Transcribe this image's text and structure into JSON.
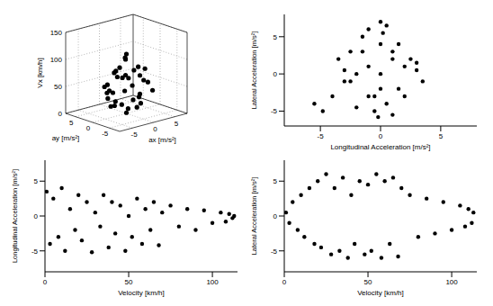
{
  "chart_data": [
    {
      "type": "scatter3d",
      "x_label": "ax [m/s²]",
      "y_label": "ay [m/s²]",
      "z_label": "Vx [km/h]",
      "x": [
        -3,
        -1,
        0,
        1,
        2,
        -2,
        0.5,
        -0.5,
        3,
        -4,
        1.5,
        -1.5,
        0,
        2.5,
        -2.5,
        0.8,
        -0.8,
        1.2,
        -3.5,
        4,
        0.3,
        -1.2,
        2,
        -2,
        0,
        1,
        -1,
        0.5,
        -6,
        3.5,
        -0.3,
        1.8,
        -1.8,
        0.6,
        -2.8,
        2.2
      ],
      "y": [
        2,
        -3,
        4,
        -1,
        0.5,
        -2,
        1,
        3,
        -4,
        0.5,
        5,
        -5,
        0,
        2.5,
        1.5,
        -2.5,
        -1,
        3.5,
        -3,
        1,
        6,
        -5.5,
        -3,
        4,
        -0.5,
        1.5,
        2,
        -4.5,
        -4,
        -2,
        0.8,
        -1.5,
        2.8,
        -3.5,
        -0.8,
        3
      ],
      "z": [
        40,
        60,
        30,
        80,
        20,
        50,
        100,
        70,
        45,
        35,
        65,
        25,
        110,
        55,
        15,
        90,
        5,
        75,
        30,
        60,
        40,
        50,
        85,
        45,
        10,
        95,
        20,
        70,
        35,
        55,
        65,
        30,
        40,
        25,
        75,
        60
      ],
      "xlim": [
        -8,
        8
      ],
      "ylim": [
        -8,
        8
      ],
      "zlim": [
        0,
        150
      ],
      "xticks": [
        -5,
        0,
        5
      ],
      "yticks": [
        -5,
        0,
        5
      ],
      "zticks": [
        0,
        50,
        100,
        150
      ],
      "color": "#000000",
      "marker": "dot",
      "grid": true
    },
    {
      "type": "scatter",
      "x_label": "Longitudinal Acceleration [m/s²]",
      "y_label": "Lateral Acceleration [m/s²]",
      "x": [
        -5.5,
        -4.8,
        -4,
        -3.5,
        -3,
        -2.5,
        -2,
        -1.5,
        -1,
        -0.5,
        0,
        0.5,
        1,
        1.5,
        2,
        2.5,
        3,
        3.5,
        -1,
        0,
        1,
        -2,
        2,
        0,
        -0.5,
        0.5,
        -1.5,
        1.5,
        0,
        -3,
        3,
        -2.5,
        0.2,
        -0.2,
        1,
        -1
      ],
      "y": [
        -4,
        -5,
        -3,
        2,
        -1,
        3,
        -4.5,
        5,
        6,
        -5,
        7,
        6.5,
        -5.5,
        4,
        -3,
        2,
        0.5,
        -1,
        1,
        -2,
        2,
        0,
        1,
        4,
        -3,
        -4,
        3,
        -2,
        0,
        0.5,
        1.5,
        -1,
        5.5,
        -5.8,
        3,
        -3
      ],
      "xlim": [
        -8,
        8
      ],
      "ylim": [
        -7,
        8
      ],
      "xticks": [
        -5,
        0,
        5
      ],
      "yticks": [
        -5,
        0,
        5
      ],
      "color": "#000000",
      "marker": "dot",
      "grid": false
    },
    {
      "type": "scatter",
      "x_label": "Velocity [km/h]",
      "y_label": "Longitudinal Acceleration [m/s²]",
      "x": [
        1,
        3,
        5,
        8,
        10,
        12,
        15,
        18,
        20,
        22,
        25,
        28,
        30,
        33,
        35,
        38,
        40,
        42,
        45,
        48,
        50,
        52,
        55,
        58,
        60,
        63,
        65,
        68,
        70,
        75,
        80,
        85,
        90,
        95,
        100,
        105,
        108,
        110,
        112,
        113
      ],
      "y": [
        3.5,
        -4,
        2.5,
        -3,
        4,
        -5,
        1,
        -2,
        3,
        -3.5,
        2,
        -5.2,
        0.5,
        -1.5,
        3,
        -4.5,
        2,
        -2.5,
        1.5,
        -5,
        0,
        -3,
        2.5,
        -4,
        1,
        -2,
        2,
        -4.2,
        0.5,
        1.5,
        -1.5,
        1,
        -2,
        0.8,
        -1,
        0.5,
        -0.8,
        0.3,
        -0.3,
        0
      ],
      "xlim": [
        0,
        115
      ],
      "ylim": [
        -8,
        8
      ],
      "xticks": [
        0,
        50,
        100
      ],
      "yticks": [
        -5,
        0,
        5
      ],
      "color": "#000000",
      "marker": "dot",
      "grid": false
    },
    {
      "type": "scatter",
      "x_label": "Velocity [km/h]",
      "y_label": "Lateral Acceleration [m/s²]",
      "x": [
        1,
        3,
        5,
        8,
        10,
        12,
        15,
        18,
        20,
        22,
        25,
        28,
        30,
        33,
        35,
        38,
        40,
        42,
        45,
        48,
        50,
        52,
        55,
        58,
        60,
        63,
        65,
        68,
        70,
        75,
        80,
        85,
        90,
        95,
        100,
        105,
        108,
        110,
        112,
        113
      ],
      "y": [
        0.5,
        -1,
        2,
        -2,
        3,
        -3,
        4,
        -4,
        5,
        -4.5,
        6,
        -5.5,
        4,
        -5,
        5.5,
        -6,
        3,
        -4,
        5,
        -5.5,
        4.5,
        -5,
        6,
        -6,
        5,
        -4,
        5.5,
        -5.8,
        4,
        3,
        -3,
        2.5,
        -2.5,
        2,
        -2,
        1.5,
        -1.5,
        1,
        -1,
        0.5
      ],
      "xlim": [
        0,
        115
      ],
      "ylim": [
        -8,
        8
      ],
      "xticks": [
        0,
        50,
        100
      ],
      "yticks": [
        -5,
        0,
        5
      ],
      "color": "#000000",
      "marker": "dot",
      "grid": false
    }
  ]
}
